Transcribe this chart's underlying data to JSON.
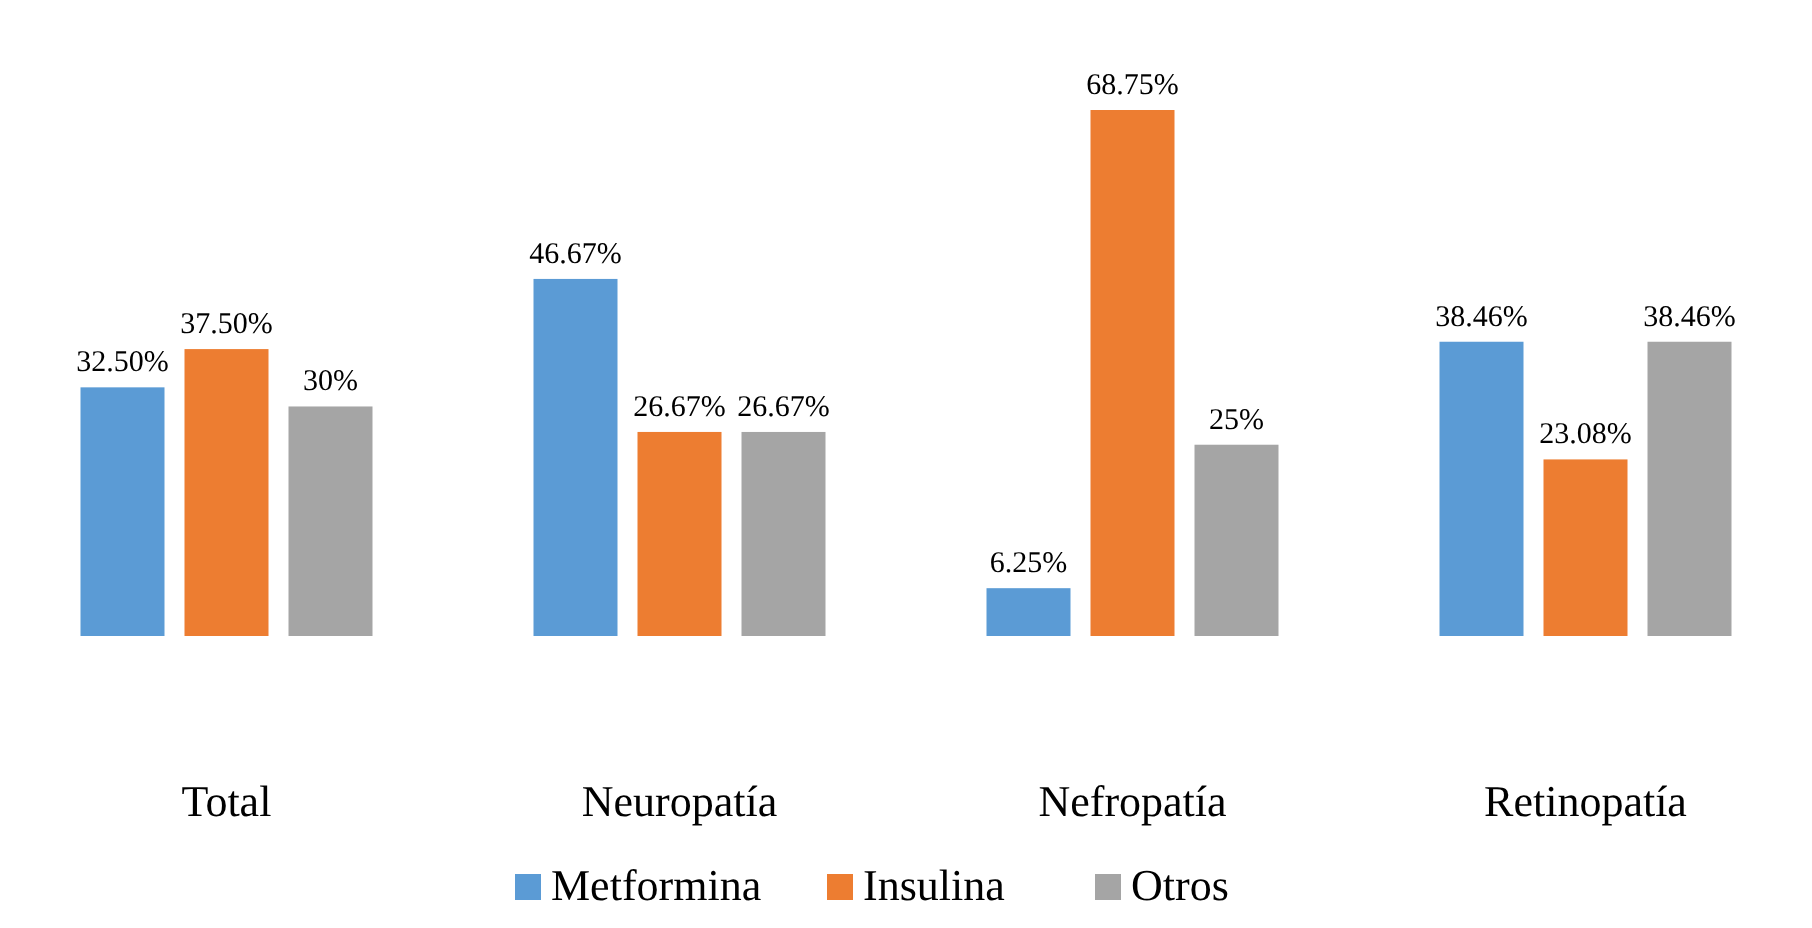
{
  "chart_data": {
    "type": "bar",
    "categories": [
      "Total",
      "Neuropatía",
      "Nefropatía",
      "Retinopatía"
    ],
    "series": [
      {
        "name": "Metformina",
        "color": "#5b9bd5",
        "values": [
          32.5,
          46.67,
          6.25,
          38.46
        ],
        "value_labels": [
          "32.50%",
          "46.67%",
          "6.25%",
          "38.46%"
        ]
      },
      {
        "name": "Insulina",
        "color": "#ed7d31",
        "values": [
          37.5,
          26.67,
          68.75,
          23.08
        ],
        "value_labels": [
          "37.50%",
          "26.67%",
          "68.75%",
          "23.08%"
        ]
      },
      {
        "name": "Otros",
        "color": "#a5a5a5",
        "values": [
          30,
          26.67,
          25,
          38.46
        ],
        "value_labels": [
          "30%",
          "26.67%",
          "25%",
          "38.46%"
        ]
      }
    ],
    "tick_labels": "x",
    "legend": "bottom"
  }
}
